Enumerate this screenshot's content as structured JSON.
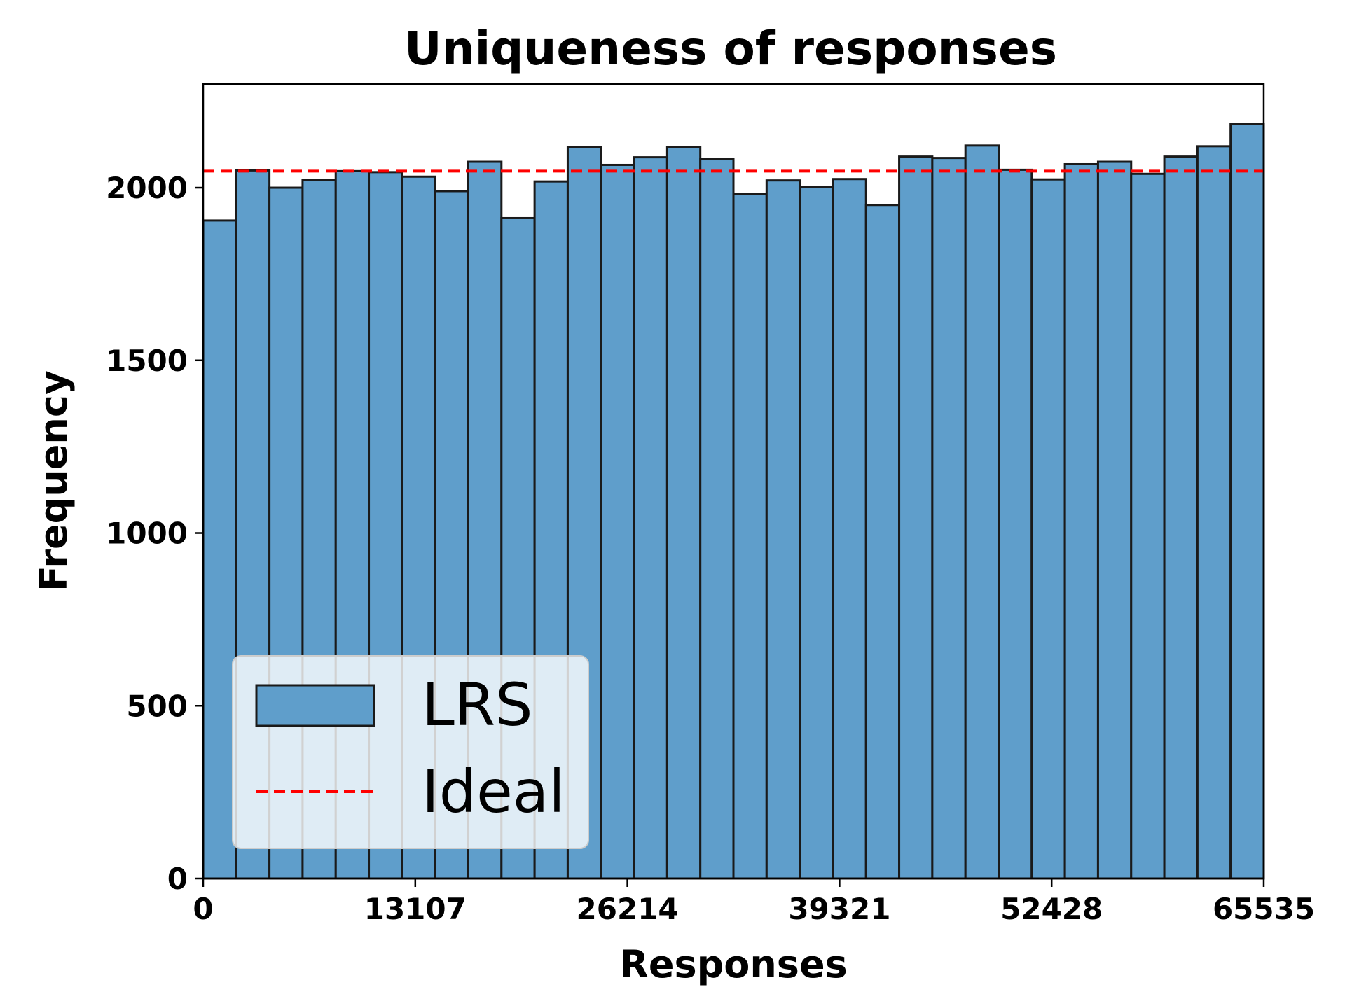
{
  "chart_data": {
    "type": "bar",
    "title": "Uniqueness of responses",
    "xlabel": "Responses",
    "ylabel": "Frequency",
    "xlim": [
      0,
      65535
    ],
    "ylim": [
      0,
      2300
    ],
    "xticks": [
      0,
      13107,
      26214,
      39321,
      52428,
      65535
    ],
    "xtick_labels": [
      "0",
      "13107",
      "26214",
      "39321",
      "52428",
      "65535"
    ],
    "yticks": [
      0,
      500,
      1000,
      1500,
      2000
    ],
    "ytick_labels": [
      "0",
      "500",
      "1000",
      "1500",
      "2000"
    ],
    "grid": false,
    "legend_position": "lower-left",
    "series": [
      {
        "name": "LRS",
        "kind": "histogram",
        "color": "#5f9ecb",
        "edge_color": "#1a1a1a",
        "bins": 32,
        "values": [
          1905,
          2050,
          2000,
          2022,
          2048,
          2045,
          2032,
          1990,
          2075,
          1912,
          2018,
          2118,
          2066,
          2088,
          2118,
          2083,
          1982,
          2021,
          2003,
          2025,
          1950,
          2090,
          2086,
          2122,
          2052,
          2024,
          2068,
          2075,
          2040,
          2090,
          2120,
          2185
        ]
      },
      {
        "name": "Ideal",
        "kind": "hline",
        "color": "#ff0000",
        "value": 2048
      }
    ]
  }
}
